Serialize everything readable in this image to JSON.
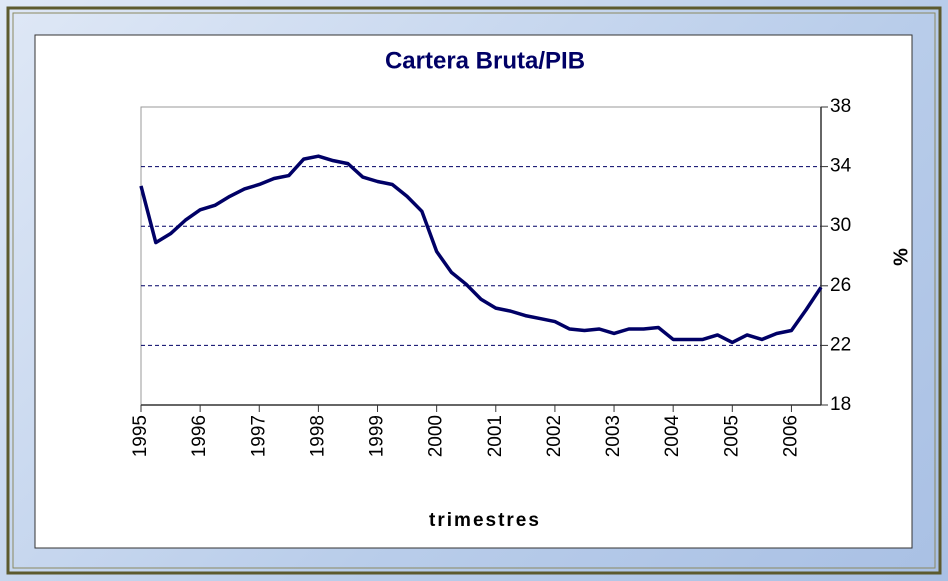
{
  "chart_data": {
    "type": "line",
    "title": "Cartera Bruta/PIB",
    "x_label": "trimestres",
    "y_label": "%",
    "categories": [
      "1995",
      null,
      null,
      null,
      "1996",
      null,
      null,
      null,
      "1997",
      null,
      null,
      null,
      "1998",
      null,
      null,
      null,
      "1999",
      null,
      null,
      null,
      "2000",
      null,
      null,
      null,
      "2001",
      null,
      null,
      null,
      "2002",
      null,
      null,
      null,
      "2003",
      null,
      null,
      null,
      "2004",
      null,
      null,
      null,
      "2005",
      null,
      null,
      null,
      "2006",
      null,
      null
    ],
    "values": [
      32.7,
      28.9,
      29.5,
      30.4,
      31.1,
      31.4,
      32.0,
      32.5,
      32.8,
      33.2,
      33.4,
      34.5,
      34.7,
      34.4,
      34.2,
      33.3,
      33.0,
      32.8,
      32.0,
      31.0,
      28.3,
      26.9,
      26.1,
      25.1,
      24.5,
      24.3,
      24.0,
      23.8,
      23.6,
      23.1,
      23.0,
      23.1,
      22.8,
      23.1,
      23.1,
      23.2,
      22.4,
      22.4,
      22.4,
      22.7,
      22.2,
      22.7,
      22.4,
      22.8,
      23.0,
      24.4,
      25.9
    ],
    "color": "#000066",
    "ylim": [
      18,
      38
    ],
    "yticks": [
      18,
      22,
      26,
      30,
      34,
      38
    ],
    "grid": true,
    "y_axis_side": "right"
  }
}
